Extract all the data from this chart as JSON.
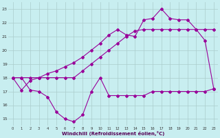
{
  "xlabel": "Windchill (Refroidissement éolien,°C)",
  "bg_color": "#c8eef0",
  "grid_color": "#aacccc",
  "line_color": "#990099",
  "xlim": [
    -0.5,
    23.5
  ],
  "ylim": [
    14.5,
    23.5
  ],
  "yticks": [
    15,
    16,
    17,
    18,
    19,
    20,
    21,
    22,
    23
  ],
  "xticks": [
    0,
    1,
    2,
    3,
    4,
    5,
    6,
    7,
    8,
    9,
    10,
    11,
    12,
    13,
    14,
    15,
    16,
    17,
    18,
    19,
    20,
    21,
    22,
    23
  ],
  "series1_x": [
    0,
    1,
    2,
    3,
    4,
    5,
    6,
    7,
    8,
    9,
    10,
    11,
    12,
    13,
    14,
    15,
    16,
    17,
    18,
    19,
    20,
    21,
    22,
    23
  ],
  "series1_y": [
    18.0,
    18.0,
    17.1,
    17.0,
    16.6,
    15.5,
    15.0,
    14.8,
    15.3,
    17.0,
    18.0,
    16.7,
    16.7,
    16.7,
    16.7,
    16.7,
    17.0,
    17.0,
    17.0,
    17.0,
    17.0,
    17.0,
    17.0,
    17.2
  ],
  "series2_x": [
    0,
    1,
    2,
    3,
    4,
    5,
    6,
    7,
    8,
    9,
    10,
    11,
    12,
    13,
    14,
    15,
    16,
    17,
    18,
    19,
    20,
    21,
    22,
    23
  ],
  "series2_y": [
    18.0,
    18.0,
    18.0,
    18.0,
    18.0,
    18.0,
    18.0,
    18.0,
    18.5,
    19.0,
    19.5,
    20.0,
    20.5,
    21.0,
    21.4,
    21.5,
    21.5,
    21.5,
    21.5,
    21.5,
    21.5,
    21.5,
    21.5,
    21.5
  ],
  "series3_x": [
    0,
    1,
    2,
    3,
    4,
    5,
    6,
    7,
    8,
    9,
    10,
    11,
    12,
    13,
    14,
    15,
    16,
    17,
    18,
    19,
    20,
    21,
    22,
    23
  ],
  "series3_y": [
    18.0,
    17.1,
    17.8,
    18.0,
    18.3,
    18.5,
    18.8,
    19.1,
    19.5,
    20.0,
    20.5,
    21.1,
    21.5,
    21.1,
    21.0,
    22.2,
    22.3,
    23.0,
    22.3,
    22.2,
    22.2,
    21.5,
    20.7,
    17.2
  ]
}
